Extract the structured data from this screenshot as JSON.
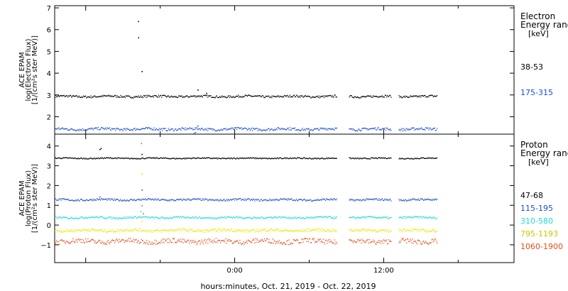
{
  "chart_data": [
    {
      "type": "scatter",
      "panel": "electron",
      "ylabel_lines": [
        "ACE EPAM",
        "log(Electron Flux)",
        "[1/(cm²s ster MeV)]"
      ],
      "ylim": [
        1.2,
        7.1
      ],
      "yticks": [
        2,
        3,
        4,
        5,
        6,
        7
      ],
      "legend_title": [
        "Electron",
        "Energy ranges",
        "[keV]"
      ],
      "series": [
        {
          "name": "38-53",
          "color": "#000000",
          "level": 2.95,
          "noise": 0.05,
          "extra_points": [
            [
              -7.8,
              6.4
            ],
            [
              -7.78,
              5.65
            ],
            [
              -7.5,
              4.1
            ],
            [
              -3.0,
              3.25
            ],
            [
              -2.3,
              3.1
            ]
          ]
        },
        {
          "name": "175-315",
          "color": "#1a4fd6",
          "level": 1.45,
          "noise": 0.06,
          "extra_points": [
            [
              -3.3,
              1.25
            ],
            [
              -3.2,
              1.3
            ],
            [
              -3.0,
              1.6
            ]
          ]
        }
      ]
    },
    {
      "type": "scatter",
      "panel": "proton",
      "ylabel_lines": [
        "ACE EPAM",
        "log(Proton Flux)",
        "[1/(cm²s ster MeV)]"
      ],
      "ylim": [
        -1.9,
        4.6
      ],
      "yticks": [
        -1,
        0,
        1,
        2,
        3,
        4
      ],
      "legend_title": [
        "Proton",
        "Energy ranges",
        "[keV]"
      ],
      "series": [
        {
          "name": "47-68",
          "color": "#000000",
          "level": 3.4,
          "noise": 0.03,
          "extra_points": [
            [
              -10.9,
              3.85
            ],
            [
              -10.8,
              3.9
            ],
            [
              -7.5,
              3.6
            ]
          ]
        },
        {
          "name": "115-195",
          "color": "#1a4fd6",
          "level": 1.3,
          "noise": 0.05,
          "extra_points": [
            [
              -10.9,
              1.45
            ],
            [
              -7.5,
              1.8
            ]
          ]
        },
        {
          "name": "310-580",
          "color": "#20d8d8",
          "level": 0.4,
          "noise": 0.05,
          "extra_points": [
            [
              -7.6,
              0.7
            ]
          ]
        },
        {
          "name": "795-1193",
          "color": "#e8e800",
          "level": -0.25,
          "noise": 0.07,
          "extra_points": [
            [
              -7.5,
              2.6
            ],
            [
              -7.5,
              0.2
            ]
          ]
        },
        {
          "name": "1060-1900",
          "color": "#e0501a",
          "level": -0.8,
          "noise": 0.12,
          "extra_points": [
            [
              -7.55,
              4.15
            ],
            [
              -7.5,
              1.0
            ],
            [
              -7.4,
              0.6
            ]
          ]
        }
      ]
    }
  ],
  "x_axis": {
    "label": "hours:minutes, Oct. 21, 2019 - Oct. 22, 2019",
    "ticks": [
      {
        "value": 0,
        "label": "0:00"
      },
      {
        "value": 12,
        "label": "12:00"
      }
    ],
    "xlim": [
      -14.5,
      22.5
    ],
    "data_segments": [
      [
        -14.5,
        8.2
      ],
      [
        9.2,
        12.6
      ],
      [
        13.2,
        16.3
      ]
    ]
  }
}
